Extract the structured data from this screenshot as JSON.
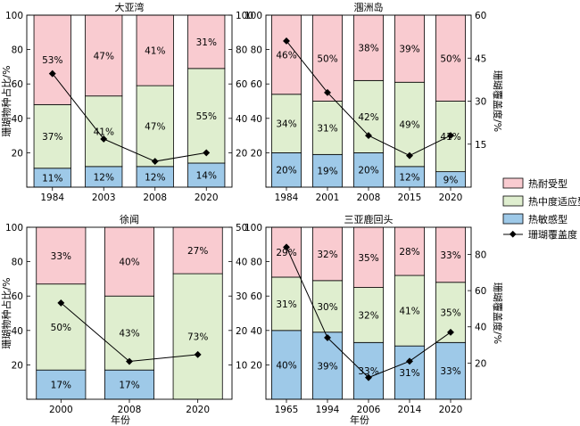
{
  "colors": {
    "heat_tolerant": "#f9cbd0",
    "moderate": "#dfeecf",
    "heat_sensitive": "#9ec9e8",
    "coverage_line": "#000000"
  },
  "legend": {
    "heat_tolerant": "热耐受型",
    "moderate": "热中度适应型",
    "heat_sensitive": "热敏感型",
    "coverage": "珊瑚覆盖度"
  },
  "chart_data": [
    {
      "type": "bar",
      "title": "大亚湾",
      "ylabel": "珊瑚物种占比/%",
      "y2label": "",
      "xlabel": "",
      "categories": [
        "1984",
        "2003",
        "2008",
        "2020"
      ],
      "ylim": [
        0,
        100
      ],
      "y_ticks": [
        "20",
        "40",
        "60",
        "80",
        "100"
      ],
      "y2lim": [
        0,
        100
      ],
      "y2_ticks": [
        "20",
        "40",
        "60",
        "80",
        "100"
      ],
      "series": [
        {
          "name": "热敏感型",
          "values": [
            11,
            12,
            12,
            14
          ],
          "labels": [
            "11%",
            "12%",
            "12%",
            "14%"
          ]
        },
        {
          "name": "热中度适应型",
          "values": [
            37,
            41,
            47,
            55
          ],
          "labels": [
            "37%",
            "41%",
            "47%",
            "55%"
          ]
        },
        {
          "name": "热耐受型",
          "values": [
            53,
            47,
            41,
            31
          ],
          "labels": [
            "53%",
            "47%",
            "41%",
            "31%"
          ]
        }
      ],
      "coverage": {
        "name": "珊瑚覆盖度",
        "values": [
          66,
          28,
          15,
          20
        ]
      }
    },
    {
      "type": "bar",
      "title": "涠洲岛",
      "ylabel": "",
      "y2label": "珊瑚覆盖度/%",
      "xlabel": "",
      "categories": [
        "1984",
        "2001",
        "2008",
        "2015",
        "2020"
      ],
      "ylim": [
        0,
        100
      ],
      "y_ticks": [
        "20",
        "40",
        "60",
        "80",
        "100"
      ],
      "y2lim": [
        0,
        60
      ],
      "y2_ticks": [
        "15",
        "30",
        "45",
        "60"
      ],
      "series": [
        {
          "name": "热敏感型",
          "values": [
            20,
            19,
            20,
            12,
            9
          ],
          "labels": [
            "20%",
            "19%",
            "20%",
            "12%",
            "9%"
          ]
        },
        {
          "name": "热中度适应型",
          "values": [
            34,
            31,
            42,
            49,
            41
          ],
          "labels": [
            "34%",
            "31%",
            "42%",
            "49%",
            "41%"
          ]
        },
        {
          "name": "热耐受型",
          "values": [
            46,
            50,
            38,
            39,
            50
          ],
          "labels": [
            "46%",
            "50%",
            "38%",
            "39%",
            "50%"
          ]
        }
      ],
      "coverage": {
        "name": "珊瑚覆盖度",
        "values": [
          51,
          33,
          18,
          11,
          18
        ]
      }
    },
    {
      "type": "bar",
      "title": "徐闻",
      "ylabel": "珊瑚物种占比/%",
      "y2label": "",
      "xlabel": "年份",
      "categories": [
        "2000",
        "2008",
        "2020"
      ],
      "ylim": [
        0,
        100
      ],
      "y_ticks": [
        "20",
        "40",
        "60",
        "80",
        "100"
      ],
      "y2lim": [
        0,
        50
      ],
      "y2_ticks": [
        "10",
        "20",
        "30",
        "40",
        "50"
      ],
      "series": [
        {
          "name": "热敏感型",
          "values": [
            17,
            17,
            0
          ],
          "labels": [
            "17%",
            "17%",
            ""
          ]
        },
        {
          "name": "热中度适应型",
          "values": [
            50,
            43,
            73
          ],
          "labels": [
            "50%",
            "43%",
            "73%"
          ]
        },
        {
          "name": "热耐受型",
          "values": [
            33,
            40,
            27
          ],
          "labels": [
            "33%",
            "40%",
            "27%"
          ]
        }
      ],
      "coverage": {
        "name": "珊瑚覆盖度",
        "values": [
          28,
          11,
          13
        ]
      }
    },
    {
      "type": "bar",
      "title": "三亚鹿回头",
      "ylabel": "",
      "y2label": "珊瑚覆盖度/%",
      "xlabel": "年份",
      "categories": [
        "1965",
        "1994",
        "2006",
        "2014",
        "2020"
      ],
      "ylim": [
        0,
        100
      ],
      "y_ticks": [
        "20",
        "40",
        "60",
        "80",
        "100"
      ],
      "y2lim": [
        0,
        95
      ],
      "y2_ticks": [
        "20",
        "40",
        "60",
        "80"
      ],
      "series": [
        {
          "name": "热敏感型",
          "values": [
            40,
            39,
            33,
            31,
            33
          ],
          "labels": [
            "40%",
            "39%",
            "33%",
            "31%",
            "33%"
          ]
        },
        {
          "name": "热中度适应型",
          "values": [
            31,
            30,
            32,
            41,
            35
          ],
          "labels": [
            "31%",
            "30%",
            "32%",
            "41%",
            "35%"
          ]
        },
        {
          "name": "热耐受型",
          "values": [
            29,
            32,
            35,
            28,
            33
          ],
          "labels": [
            "29%",
            "32%",
            "35%",
            "28%",
            "33%"
          ]
        }
      ],
      "coverage": {
        "name": "珊瑚覆盖度",
        "values": [
          84,
          34,
          12,
          21,
          37
        ]
      }
    }
  ]
}
